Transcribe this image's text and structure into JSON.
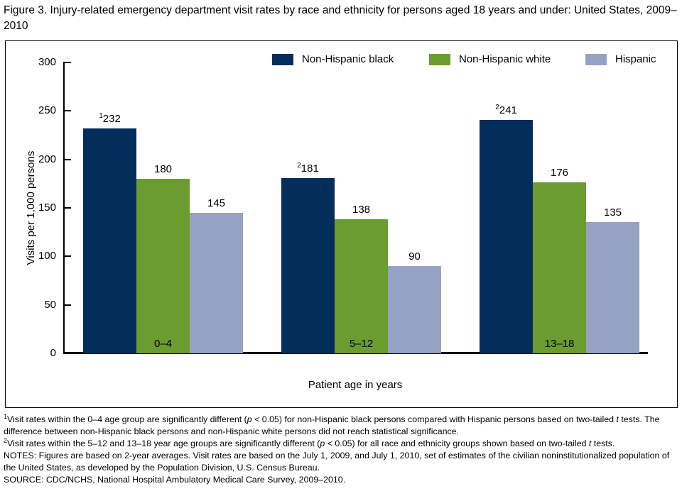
{
  "title": "Figure 3. Injury-related emergency department visit rates by race and ethnicity for persons aged 18 years and under: United States, 2009–2010",
  "chart_data": {
    "type": "bar",
    "title": "",
    "categories": [
      "0–4",
      "5–12",
      "13–18"
    ],
    "series": [
      {
        "name": "Non-Hispanic black",
        "color": "#032E5C",
        "values": [
          232,
          181,
          241
        ],
        "value_labels": [
          "^1^232",
          "^2^181",
          "^2^241"
        ]
      },
      {
        "name": "Non-Hispanic white",
        "color": "#6B9C2F",
        "values": [
          180,
          138,
          176
        ],
        "value_labels": [
          "180",
          "138",
          "176"
        ]
      },
      {
        "name": "Hispanic",
        "color": "#96A2C4",
        "values": [
          145,
          90,
          135
        ],
        "value_labels": [
          "145",
          "90",
          "135"
        ]
      }
    ],
    "xlabel": "Patient age in years",
    "ylabel": "Visits per 1,000 persons",
    "ylim": [
      0,
      300
    ],
    "yticks": [
      0,
      50,
      100,
      150,
      200,
      250,
      300
    ],
    "grid": false,
    "legend_position": "top"
  },
  "footnotes": [
    "^1^Visit rates within the 0–4 age group are significantly different (*p* < 0.05) for non-Hispanic black persons  compared with Hispanic persons  based on two-tailed *t* tests. The difference between non-Hispanic black persons and non-Hispanic white persons did not reach statistical significance.",
    "^2^Visit rates within the 5–12 and 13–18 year age groups are significantly different (*p* < 0.05) for all  race and ethnicity groups shown based on two-tailed *t* tests.",
    "NOTES: Figures are based on 2-year averages. Visit rates are based on the July 1, 2009, and July 1, 2010, set of estimates of the civilian noninstitutionalized population of the United States, as developed by the Population Division, U.S. Census Bureau.",
    "SOURCE: CDC/NCHS, National Hospital Ambulatory Medical Care Survey, 2009–2010."
  ]
}
